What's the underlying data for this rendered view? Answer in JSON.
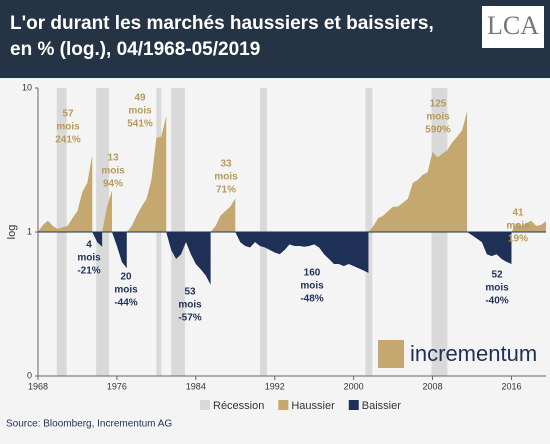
{
  "chart_data": {
    "type": "area",
    "title": [
      "L'or durant les marchés haussiers et baissiers,",
      "en % (log.), 04/1968-05/2019"
    ],
    "ylabel": "log",
    "log": true,
    "ylim": [
      0.1,
      10
    ],
    "yticks": [
      10,
      1,
      {
        "value": 0.1,
        "label": "0"
      }
    ],
    "xlim": [
      1968,
      2019.5
    ],
    "xticks": [
      1968,
      1976,
      1984,
      1992,
      2000,
      2008,
      2016
    ],
    "x": [
      1968,
      1968.5,
      1969,
      1969.5,
      1970,
      1970.5,
      1971,
      1971.5,
      1972,
      1972.5,
      1973,
      1973.5,
      1974,
      1974.5,
      1975,
      1975.5,
      1976,
      1976.5,
      1977,
      1977.5,
      1978,
      1978.5,
      1979,
      1979.5,
      1980,
      1980.5,
      1981,
      1981.5,
      1982,
      1982.5,
      1983,
      1983.5,
      1984,
      1984.5,
      1985,
      1985.5,
      1986,
      1986.5,
      1987,
      1987.5,
      1988,
      1988.5,
      1989,
      1989.5,
      1990,
      1990.5,
      1991,
      1991.5,
      1992,
      1992.5,
      1993,
      1993.5,
      1994,
      1994.5,
      1995,
      1995.5,
      1996,
      1996.5,
      1997,
      1997.5,
      1998,
      1998.5,
      1999,
      1999.5,
      2000,
      2000.5,
      2001,
      2001.5,
      2002,
      2002.5,
      2003,
      2003.5,
      2004,
      2004.5,
      2005,
      2005.5,
      2006,
      2006.5,
      2007,
      2007.5,
      2008,
      2008.5,
      2009,
      2009.5,
      2010,
      2010.5,
      2011,
      2011.5,
      2012,
      2012.5,
      2013,
      2013.5,
      2014,
      2014.5,
      2015,
      2015.5,
      2016,
      2016.5,
      2017,
      2017.5,
      2018,
      2018.5,
      2019,
      2019.5
    ],
    "series": [
      {
        "name": "Haussier",
        "color": "#c4a86f",
        "values": [
          1.0,
          1.12,
          1.2,
          1.1,
          1.05,
          1.08,
          1.1,
          1.25,
          1.4,
          1.9,
          2.2,
          3.41,
          null,
          1.0,
          1.5,
          1.94,
          null,
          null,
          1.0,
          1.1,
          1.3,
          1.5,
          1.7,
          2.3,
          4.5,
          4.6,
          6.41,
          null,
          null,
          null,
          null,
          null,
          null,
          null,
          null,
          1.0,
          1.1,
          1.3,
          1.4,
          1.5,
          1.71,
          null,
          null,
          null,
          null,
          null,
          null,
          null,
          null,
          null,
          null,
          null,
          null,
          null,
          null,
          null,
          null,
          null,
          null,
          null,
          null,
          null,
          null,
          null,
          null,
          null,
          null,
          1.0,
          1.1,
          1.25,
          1.3,
          1.4,
          1.5,
          1.5,
          1.6,
          1.7,
          2.2,
          2.3,
          2.5,
          2.6,
          3.6,
          3.3,
          3.5,
          3.7,
          4.2,
          4.6,
          5.1,
          6.9,
          null,
          null,
          null,
          null,
          null,
          null,
          null,
          null,
          1.0,
          1.15,
          1.1,
          1.15,
          1.2,
          1.1,
          1.12,
          1.19
        ]
      },
      {
        "name": "Baissier",
        "color": "#1f3057",
        "values": [
          null,
          null,
          null,
          null,
          null,
          null,
          null,
          null,
          null,
          null,
          null,
          1.0,
          0.85,
          0.79,
          null,
          1.0,
          0.8,
          0.62,
          0.56,
          null,
          null,
          null,
          null,
          null,
          null,
          null,
          1.0,
          0.75,
          0.65,
          0.7,
          0.85,
          0.7,
          0.6,
          0.55,
          0.5,
          0.43,
          null,
          null,
          null,
          null,
          1.0,
          0.85,
          0.8,
          0.78,
          0.85,
          0.8,
          0.78,
          0.75,
          0.72,
          0.7,
          0.75,
          0.82,
          0.8,
          0.8,
          0.79,
          0.8,
          0.82,
          0.78,
          0.7,
          0.65,
          0.6,
          0.6,
          0.58,
          0.6,
          0.58,
          0.56,
          0.54,
          0.52,
          null,
          null,
          null,
          null,
          null,
          null,
          null,
          null,
          null,
          null,
          null,
          null,
          null,
          null,
          null,
          null,
          null,
          null,
          null,
          1.0,
          0.95,
          0.9,
          0.85,
          0.7,
          0.68,
          0.7,
          0.65,
          0.62,
          0.6,
          null,
          null,
          null,
          null,
          null,
          null,
          null
        ]
      }
    ],
    "recession_label": "Récession",
    "recession_color": "#d9d9d9",
    "recessions": [
      [
        1969.9,
        1970.9
      ],
      [
        1973.9,
        1975.2
      ],
      [
        1980.0,
        1980.5
      ],
      [
        1981.5,
        1982.9
      ],
      [
        1990.5,
        1991.2
      ],
      [
        2001.2,
        2001.9
      ],
      [
        2007.9,
        2009.5
      ]
    ],
    "annotations": [
      [
        "57",
        "mois",
        "241%"
      ],
      [
        "4",
        "mois",
        "-21%"
      ],
      [
        "13",
        "mois",
        "94%"
      ],
      [
        "20",
        "mois",
        "-44%"
      ],
      [
        "49",
        "mois",
        "541%"
      ],
      [
        "53",
        "mois",
        "-57%"
      ],
      [
        "33",
        "mois",
        "71%"
      ],
      [
        "160",
        "mois",
        "-48%"
      ],
      [
        "125",
        "mois",
        "590%"
      ],
      [
        "52",
        "mois",
        "-40%"
      ],
      [
        "41",
        "mois",
        "19%"
      ]
    ],
    "source": "Source: Bloomberg, Incrementum AG",
    "logo": "LCA",
    "brand": "incrementum"
  }
}
